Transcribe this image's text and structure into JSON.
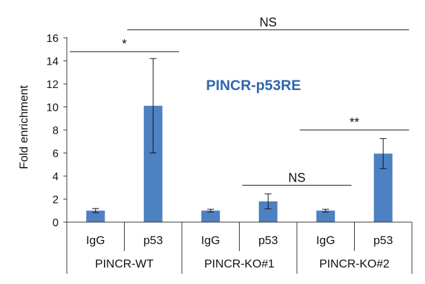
{
  "chart_data": {
    "type": "bar",
    "title": "PINCR-p53RE",
    "ylabel": "Fold enrichment",
    "xlabel": "",
    "ylim": [
      0,
      16
    ],
    "yticks": [
      0,
      2,
      4,
      6,
      8,
      10,
      12,
      14,
      16
    ],
    "grid": false,
    "legend": "none",
    "bar_color": "#4e81c2",
    "title_color": "#3166b0",
    "groups": [
      {
        "label": "PINCR-WT",
        "categories": [
          "IgG",
          "p53"
        ]
      },
      {
        "label": "PINCR-KO#1",
        "categories": [
          "IgG",
          "p53"
        ]
      },
      {
        "label": "PINCR-KO#2",
        "categories": [
          "IgG",
          "p53"
        ]
      }
    ],
    "categories": [
      "IgG",
      "p53",
      "IgG",
      "p53",
      "IgG",
      "p53"
    ],
    "values": [
      1.0,
      10.1,
      1.0,
      1.8,
      1.0,
      5.95
    ],
    "errors": [
      0.18,
      4.1,
      0.12,
      0.65,
      0.12,
      1.3
    ],
    "significance": [
      {
        "label": "*",
        "from_bar": 0,
        "to_bar": 1,
        "level": 14.8
      },
      {
        "label": "NS",
        "from_bar": 3,
        "to_bar": 4,
        "level": 3.2
      },
      {
        "label": "**",
        "from_bar": 4,
        "to_bar": 5,
        "level": 8.0
      },
      {
        "label": "NS",
        "from_bar": 1,
        "to_bar": 5,
        "level": 16.7
      }
    ]
  }
}
